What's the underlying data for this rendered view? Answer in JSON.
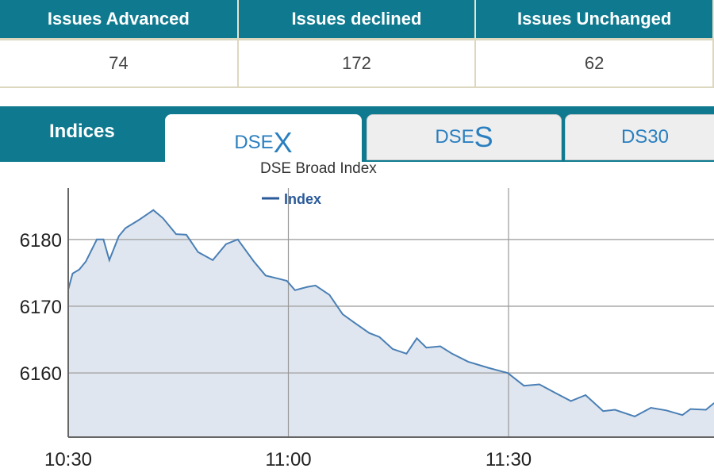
{
  "stats": {
    "headers": [
      "Issues Advanced",
      "Issues declined",
      "Issues Unchanged"
    ],
    "values": [
      "74",
      "172",
      "62"
    ]
  },
  "tabs": {
    "label": "Indices",
    "items": [
      {
        "prefix": "DSE",
        "suffix": "X",
        "active": true
      },
      {
        "prefix": "DSE",
        "suffix": "S",
        "active": false
      },
      {
        "label": "DS30",
        "active": false
      }
    ]
  },
  "chart_data": {
    "type": "area",
    "title": "DSE Broad Index",
    "legend": [
      "Index"
    ],
    "legend_placement": "top-center",
    "xlabel": "",
    "ylabel": "",
    "x_unit": "minutes since 10:30",
    "xlim": [
      0,
      88
    ],
    "ylim": [
      6150.4,
      6187.7
    ],
    "x_ticks": [
      {
        "x": 0,
        "label": "10:30"
      },
      {
        "x": 30,
        "label": "11:00"
      },
      {
        "x": 60,
        "label": "11:30"
      }
    ],
    "y_ticks": [
      6160,
      6170,
      6180
    ],
    "grid": true,
    "colors": {
      "line": "#4a7fb5",
      "fill": "#dfe6ef"
    },
    "series": [
      {
        "name": "Index",
        "x": [
          0,
          0.6,
          1.5,
          2.4,
          3.9,
          4.8,
          5.6,
          6.9,
          7.8,
          9.6,
          11.6,
          12.9,
          14.7,
          16.1,
          17.7,
          19.7,
          21.5,
          23.1,
          25.3,
          26.9,
          29.1,
          29.8,
          30.9,
          32.6,
          33.7,
          35.6,
          37.4,
          38.8,
          41,
          42.4,
          44.2,
          46.1,
          47.5,
          48.8,
          50.7,
          52.3,
          54.5,
          57.2,
          59.9,
          62.1,
          64.2,
          66.4,
          68.5,
          70.5,
          72.9,
          74.5,
          77.2,
          79.4,
          81.5,
          83.7,
          84.8,
          86.9,
          88
        ],
        "values": [
          6172.5,
          6174.9,
          6175.5,
          6176.7,
          6180,
          6180,
          6176.9,
          6180.5,
          6181.7,
          6182.9,
          6184.4,
          6183.2,
          6180.8,
          6180.7,
          6178.1,
          6176.9,
          6179.3,
          6180,
          6176.7,
          6174.6,
          6174,
          6173.8,
          6172.4,
          6172.9,
          6173.1,
          6171.7,
          6168.8,
          6167.7,
          6166,
          6165.4,
          6163.6,
          6162.9,
          6165.2,
          6163.8,
          6164,
          6162.9,
          6161.7,
          6160.8,
          6160,
          6158.1,
          6158.3,
          6157,
          6155.8,
          6156.7,
          6154.3,
          6154.5,
          6153.5,
          6154.8,
          6154.4,
          6153.7,
          6154.6,
          6154.5,
          6155.5
        ]
      }
    ]
  }
}
